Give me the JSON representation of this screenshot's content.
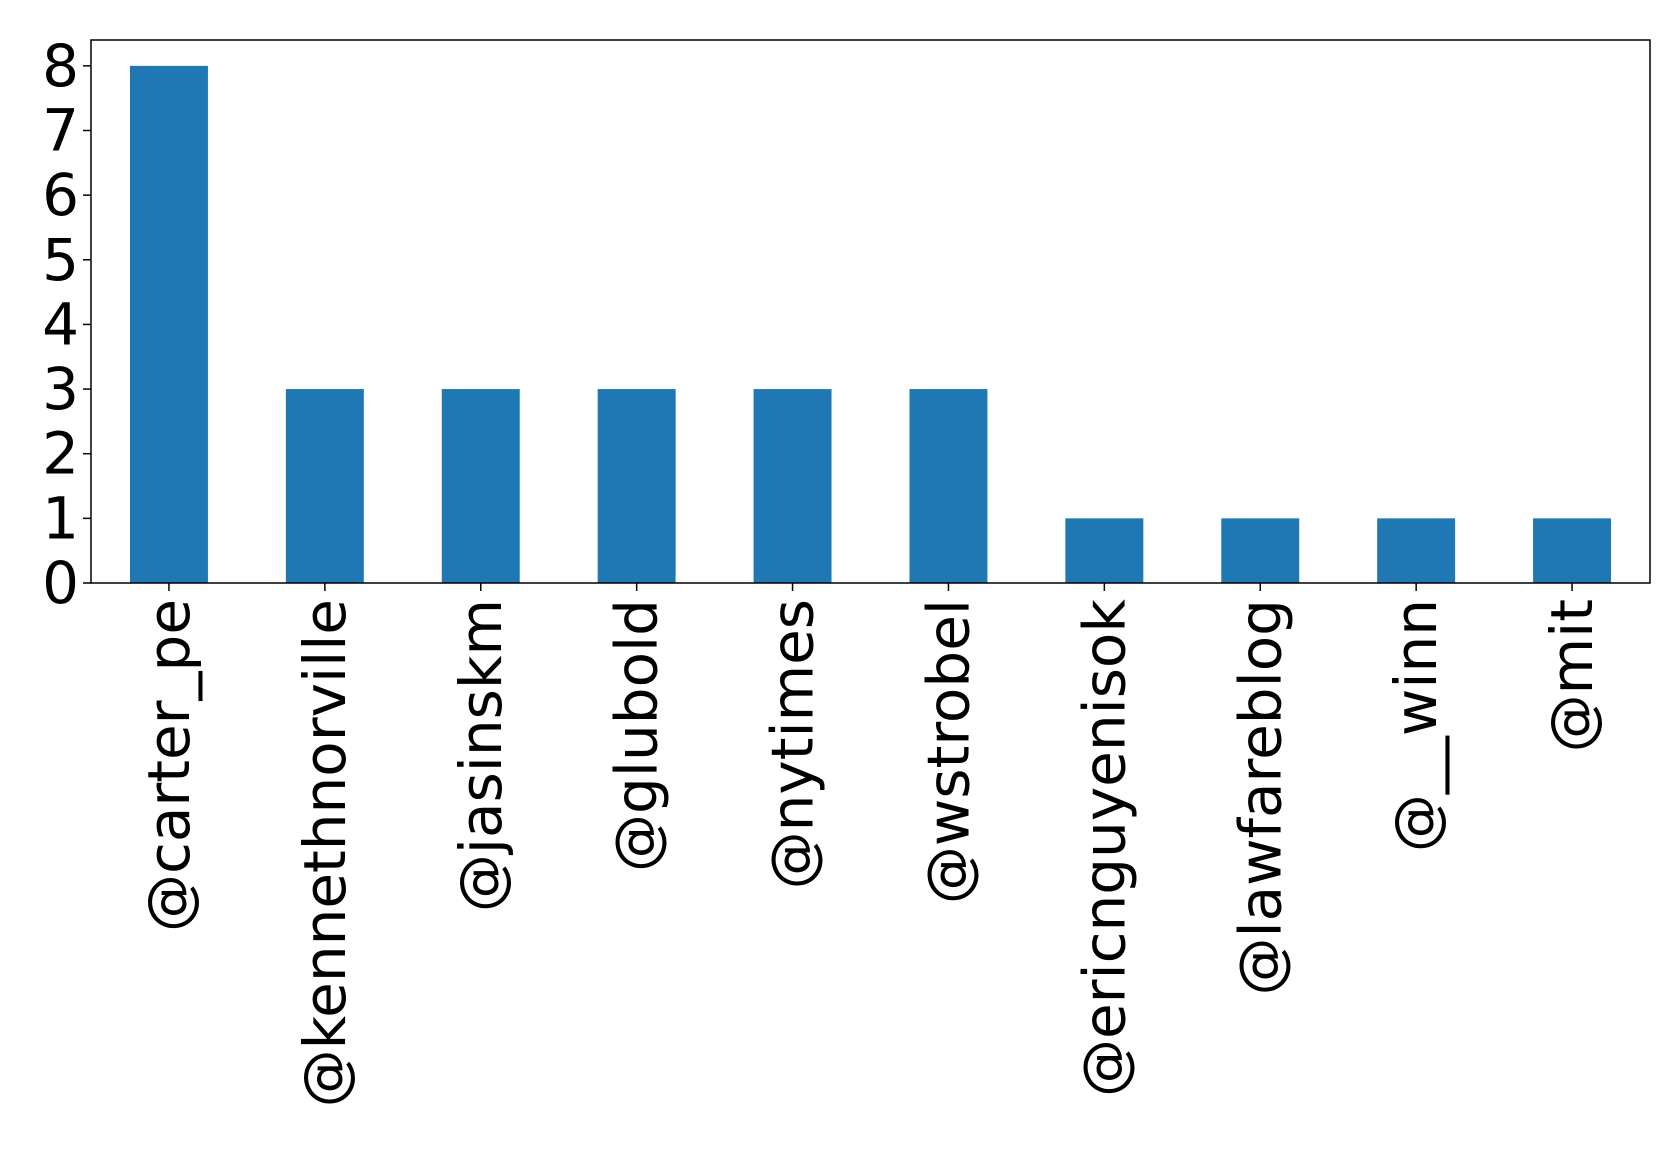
{
  "chart_data": {
    "type": "bar",
    "title": "",
    "xlabel": "",
    "ylabel": "",
    "categories": [
      "@carter_pe",
      "@kennethnorville",
      "@jasinskm",
      "@glubold",
      "@nytimes",
      "@wstrobel",
      "@ericnguyenisok",
      "@lawfareblog",
      "@__winn",
      "@mit"
    ],
    "values": [
      8,
      3,
      3,
      3,
      3,
      3,
      1,
      1,
      1,
      1
    ],
    "ylim": [
      0,
      8.4
    ],
    "yticks": [
      0,
      1,
      2,
      3,
      4,
      5,
      6,
      7,
      8
    ],
    "bar_color": "#1f77b4",
    "grid": false,
    "legend": false,
    "x_tick_rotation": "vertical"
  }
}
